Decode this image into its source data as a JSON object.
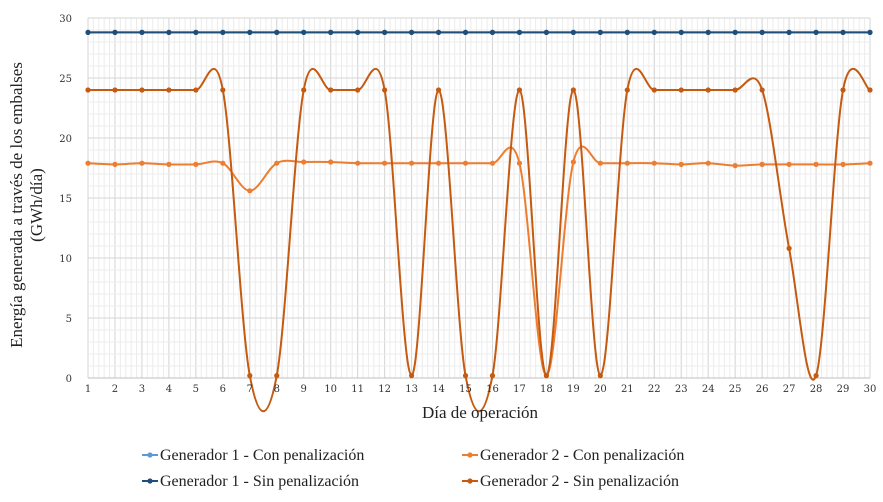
{
  "chart_data": {
    "type": "line",
    "title": "",
    "xlabel": "Día  de operación",
    "ylabel_line1": "Energía generada a través de los embalses",
    "ylabel_line2": "(GWh/día)",
    "x": [
      1,
      2,
      3,
      4,
      5,
      6,
      7,
      8,
      9,
      10,
      11,
      12,
      13,
      14,
      15,
      16,
      17,
      18,
      19,
      20,
      21,
      22,
      23,
      24,
      25,
      26,
      27,
      28,
      29,
      30
    ],
    "ylim": [
      0,
      30
    ],
    "yticks": [
      0,
      5,
      10,
      15,
      20,
      25,
      30
    ],
    "grid": true,
    "legend_position": "bottom",
    "series": [
      {
        "name": "Generador 1 - Con penalización",
        "color": "#5b9bd5",
        "marker": "circle",
        "values": [
          28.8,
          28.8,
          28.8,
          28.8,
          28.8,
          28.8,
          28.8,
          28.8,
          28.8,
          28.8,
          28.8,
          28.8,
          28.8,
          28.8,
          28.8,
          28.8,
          28.8,
          28.8,
          28.8,
          28.8,
          28.8,
          28.8,
          28.8,
          28.8,
          28.8,
          28.8,
          28.8,
          28.8,
          28.8,
          28.8
        ]
      },
      {
        "name": "Generador 2 - Con penalización",
        "color": "#ed7d31",
        "marker": "circle",
        "values": [
          17.9,
          17.8,
          17.9,
          17.8,
          17.8,
          17.9,
          15.6,
          17.9,
          18.0,
          18.0,
          17.9,
          17.9,
          17.9,
          17.9,
          17.9,
          17.9,
          17.9,
          0.2,
          18.0,
          17.9,
          17.9,
          17.9,
          17.8,
          17.9,
          17.7,
          17.8,
          17.8,
          17.8,
          17.8,
          17.9
        ]
      },
      {
        "name": "Generador 1 - Sin penalización",
        "color": "#1f4e79",
        "marker": "circle",
        "values": [
          28.8,
          28.8,
          28.8,
          28.8,
          28.8,
          28.8,
          28.8,
          28.8,
          28.8,
          28.8,
          28.8,
          28.8,
          28.8,
          28.8,
          28.8,
          28.8,
          28.8,
          28.8,
          28.8,
          28.8,
          28.8,
          28.8,
          28.8,
          28.8,
          28.8,
          28.8,
          28.8,
          28.8,
          28.8,
          28.8
        ]
      },
      {
        "name": "Generador 2 - Sin penalización",
        "color": "#c55a11",
        "marker": "circle",
        "values": [
          24.0,
          24.0,
          24.0,
          24.0,
          24.0,
          24.0,
          0.2,
          0.2,
          24.0,
          24.0,
          24.0,
          24.0,
          0.2,
          24.0,
          0.2,
          0.2,
          24.0,
          0.2,
          24.0,
          0.2,
          24.0,
          24.0,
          24.0,
          24.0,
          24.0,
          24.0,
          10.8,
          0.2,
          24.0,
          24.0
        ]
      }
    ]
  }
}
